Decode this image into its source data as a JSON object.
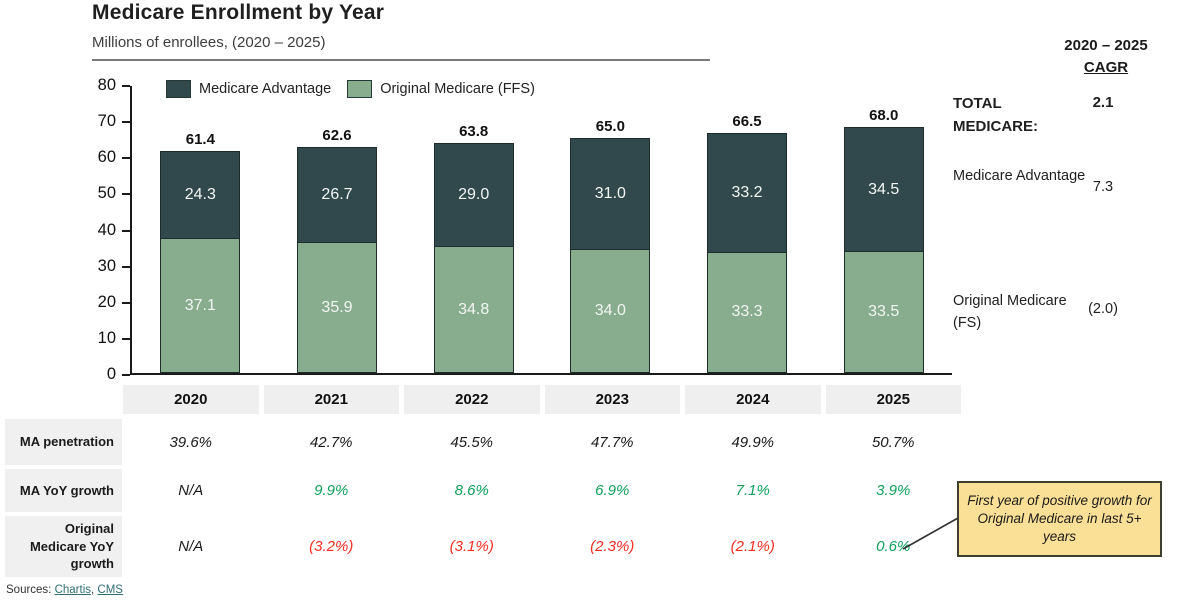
{
  "header": {
    "title": "Medicare Enrollment by Year",
    "subtitle": "Millions of enrollees, (2020 – 2025)"
  },
  "legend": {
    "items": [
      {
        "label": "Medicare Advantage",
        "color": "#31494d"
      },
      {
        "label": "Original Medicare (FFS)",
        "color": "#87ac8e"
      }
    ]
  },
  "chart_data": {
    "type": "bar",
    "stacked": true,
    "title": "Medicare Enrollment by Year",
    "ylabel": "Millions of enrollees",
    "categories": [
      "2020",
      "2021",
      "2022",
      "2023",
      "2024",
      "2025"
    ],
    "series": [
      {
        "name": "Medicare Advantage",
        "color": "#31494d",
        "values": [
          24.3,
          26.7,
          29.0,
          31.0,
          33.2,
          34.5
        ]
      },
      {
        "name": "Original Medicare (FFS)",
        "color": "#87ac8e",
        "values": [
          37.1,
          35.9,
          34.8,
          34.0,
          33.3,
          33.5
        ]
      }
    ],
    "totals": [
      61.4,
      62.6,
      63.8,
      65.0,
      66.5,
      68.0
    ],
    "ylim": [
      0,
      80
    ],
    "yticks": [
      0,
      10,
      20,
      30,
      40,
      50,
      60,
      70,
      80
    ],
    "grid": false,
    "legend_position": "top"
  },
  "table": {
    "years": [
      "2020",
      "2021",
      "2022",
      "2023",
      "2024",
      "2025"
    ],
    "rows": [
      {
        "label": "MA penetration",
        "values": [
          "39.6%",
          "42.7%",
          "45.5%",
          "47.7%",
          "49.9%",
          "50.7%"
        ],
        "styles": [
          "dark",
          "dark",
          "dark",
          "dark",
          "dark",
          "dark"
        ]
      },
      {
        "label": "MA YoY growth",
        "values": [
          "N/A",
          "9.9%",
          "8.6%",
          "6.9%",
          "7.1%",
          "3.9%"
        ],
        "styles": [
          "dark",
          "green",
          "green",
          "green",
          "green",
          "green"
        ]
      },
      {
        "label": "Original Medicare YoY growth",
        "values": [
          "N/A",
          "(3.2%)",
          "(3.1%)",
          "(2.3%)",
          "(2.1%)",
          "0.6%"
        ],
        "styles": [
          "dark",
          "red",
          "red",
          "red",
          "red",
          "green"
        ]
      }
    ]
  },
  "cagr": {
    "period": "2020 – 2025",
    "header": "CAGR",
    "rows": [
      {
        "label": "TOTAL MEDICARE:",
        "value": "2.1"
      },
      {
        "label": "Medicare Advantage",
        "value": "7.3"
      },
      {
        "label": "Original Medicare (FS)",
        "value": "(2.0)"
      }
    ]
  },
  "annotation": {
    "text": "First year of positive growth for Original Medicare in last 5+ years"
  },
  "sources": {
    "prefix": "Sources: ",
    "link1": "Chartis",
    "separator": ", ",
    "link2": "CMS"
  },
  "colors": {
    "medicare_advantage": "#31494d",
    "original_medicare": "#87ac8e",
    "positive_green": "#0fa05a",
    "negative_red": "#f62d23",
    "callout_yellow": "#fae096",
    "band_gray": "#efefef"
  }
}
